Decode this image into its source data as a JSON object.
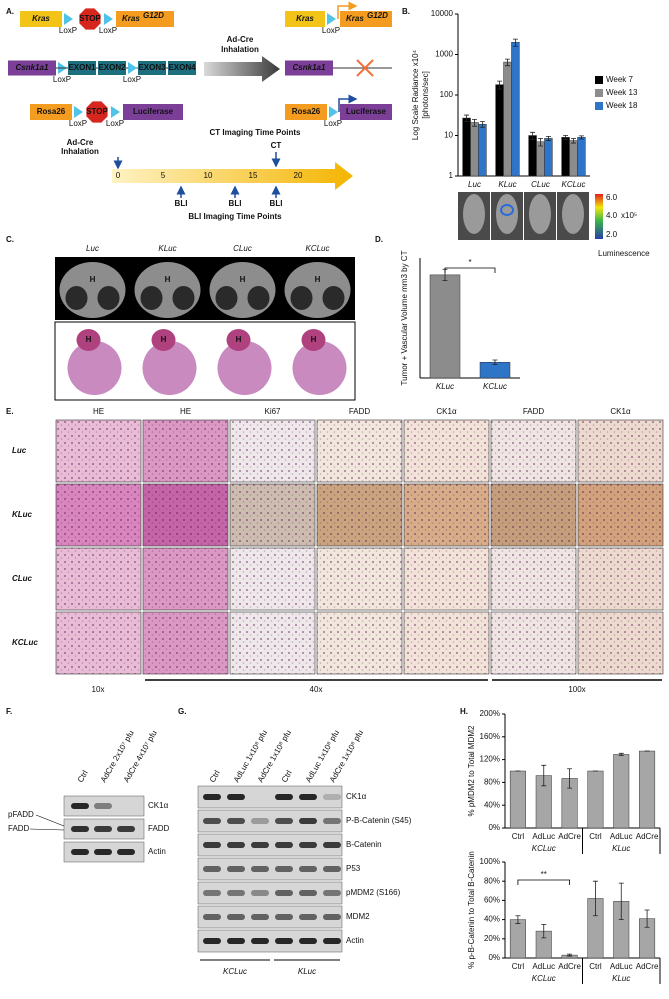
{
  "panels": {
    "A": {
      "label": "A.",
      "kras": "Kras",
      "stop": "STOP",
      "g12d": "G12D",
      "loxp": "LoxP",
      "csnk": "Csnk1a1",
      "exons": [
        "EXON1",
        "EXON2",
        "EXON3",
        "EXON4"
      ],
      "rosa": "Rosa26",
      "luciferase": "Luciferase",
      "adcre": [
        "Ad-Cre",
        "Inhalation"
      ],
      "timeline": {
        "start": [
          "Ad-Cre",
          "Inhalation"
        ],
        "ct_title": "CT Imaging Time Points",
        "ct": "CT",
        "ticks": [
          0,
          5,
          10,
          15,
          20
        ],
        "bli": "BLI",
        "bli_title": "BLI Imaging Time Points"
      }
    },
    "B": {
      "label": "B.",
      "colorbar": [
        "6.0",
        "4.0",
        "2.0"
      ],
      "colorbar_unit": "x10⁵",
      "colorbar_title": "Luminescence"
    },
    "C": {
      "label": "C.",
      "columns": [
        "Luc",
        "KLuc",
        "CLuc",
        "KCLuc"
      ],
      "heart": "H"
    },
    "D": {
      "label": "D."
    },
    "E": {
      "label": "E.",
      "columns": [
        "HE",
        "HE",
        "Ki67",
        "FADD",
        "CK1α",
        "FADD",
        "CK1α"
      ],
      "rows": [
        "Luc",
        "KLuc",
        "CLuc",
        "KCLuc"
      ],
      "magnifications": [
        "10x",
        "40x",
        "100x"
      ]
    },
    "F": {
      "label": "F.",
      "lanes": [
        "Ctrl",
        "AdCre 2x10⁷ pfu",
        "AdCre 4x10⁷ pfu"
      ],
      "bands": [
        "CK1α",
        "FADD",
        "Actin"
      ],
      "left": [
        "pFADD",
        "FADD"
      ]
    },
    "G": {
      "label": "G.",
      "lanes": [
        "Ctrl",
        "AdLuc 1x10⁸ pfu",
        "AdCre 1x10⁸ pfu",
        "Ctrl",
        "AdLuc 1x10⁸ pfu",
        "AdCre 1x10⁸ pfu"
      ],
      "bands": [
        "CK1α",
        "P-B-Catenin (S45)",
        "B-Catenin",
        "P53",
        "pMDM2 (S166)",
        "MDM2",
        "Actin"
      ],
      "groups": [
        "KCLuc",
        "KLuc"
      ]
    },
    "H": {
      "label": "H."
    }
  },
  "chart_data": [
    {
      "type": "bar",
      "log_scale": true,
      "ylabel": "Log Scale Radiance x10⁴",
      "ylabel2": "[photons/sec]",
      "categories": [
        "Luc",
        "KLuc",
        "CLuc",
        "KCLuc"
      ],
      "series": [
        {
          "name": "Week 7",
          "color": "#000000",
          "values": [
            27,
            180,
            10,
            9
          ],
          "errors": [
            5,
            40,
            2,
            1
          ]
        },
        {
          "name": "Week 13",
          "color": "#8c8c8c",
          "values": [
            21,
            650,
            7,
            7.5
          ],
          "errors": [
            4,
            120,
            1.5,
            1
          ]
        },
        {
          "name": "Week 18",
          "color": "#2e75c8",
          "values": [
            19,
            2000,
            8.5,
            9
          ],
          "errors": [
            3,
            400,
            1,
            0.8
          ]
        }
      ],
      "ylim": [
        1,
        10000
      ],
      "yticks": [
        1,
        10,
        100,
        1000,
        10000
      ],
      "legend": "right"
    },
    {
      "type": "bar",
      "ylabel": "Tumor + Vascular Volume mm3 by CT",
      "categories": [
        "KLuc",
        "KCLuc"
      ],
      "values": [
        275,
        42
      ],
      "errors": [
        15,
        6
      ],
      "colors": [
        "#8c8c8c",
        "#2e75c8"
      ],
      "ylim": [
        0,
        320
      ],
      "annotation": "*"
    },
    {
      "type": "bar",
      "ylabel": "% pMDM2 to Total MDM2",
      "categories": [
        "Ctrl",
        "AdLuc",
        "AdCre",
        "Ctrl",
        "AdLuc",
        "AdCre"
      ],
      "groups": [
        "KCLuc",
        "KLuc"
      ],
      "values": [
        100,
        92,
        87,
        100,
        129,
        135
      ],
      "errors": [
        0,
        18,
        17,
        0,
        2,
        0
      ],
      "color": "#a6a6a6",
      "ylim": [
        0,
        200
      ],
      "yticks": [
        {
          "value": 0,
          "label": "0%"
        },
        {
          "value": 40,
          "label": "40%"
        },
        {
          "value": 80,
          "label": "80%"
        },
        {
          "value": 120,
          "label": "120%"
        },
        {
          "value": 160,
          "label": "160%"
        },
        {
          "value": 200,
          "label": "200%"
        }
      ]
    },
    {
      "type": "bar",
      "ylabel": "% p-B-Catenin to Total B-Catenin",
      "categories": [
        "Ctrl",
        "AdLuc",
        "AdCre",
        "Ctrl",
        "AdLuc",
        "AdCre"
      ],
      "groups": [
        "KCLuc",
        "KLuc"
      ],
      "values": [
        40,
        28,
        3,
        62,
        59,
        41
      ],
      "errors": [
        4,
        7,
        1,
        18,
        19,
        9
      ],
      "color": "#a6a6a6",
      "ylim": [
        0,
        100
      ],
      "yticks": [
        {
          "value": 0,
          "label": "0%"
        },
        {
          "value": 20,
          "label": "20%"
        },
        {
          "value": 40,
          "label": "40%"
        },
        {
          "value": 60,
          "label": "60%"
        },
        {
          "value": 80,
          "label": "80%"
        },
        {
          "value": 100,
          "label": "100%"
        }
      ],
      "annotation": "**"
    }
  ]
}
